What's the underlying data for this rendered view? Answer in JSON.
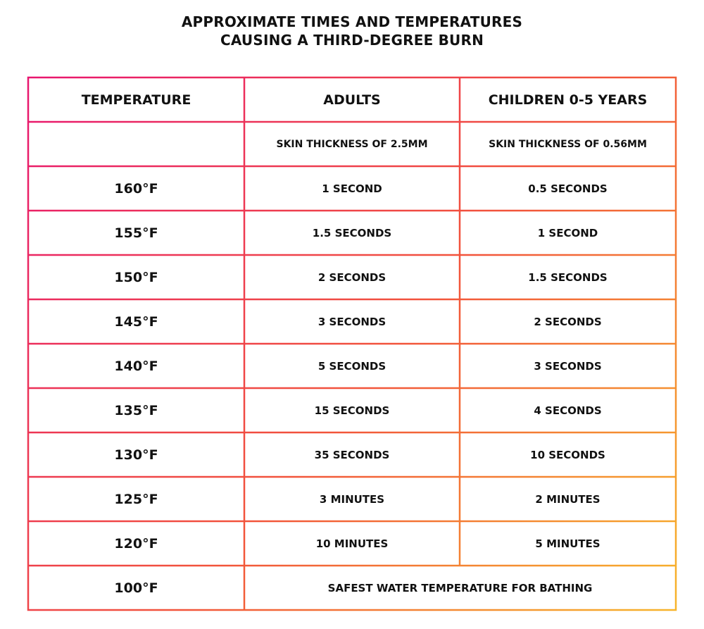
{
  "title": {
    "line1": "APPROXIMATE TIMES AND TEMPERATURES",
    "line2": "CAUSING A THIRD-DEGREE BURN"
  },
  "colors": {
    "border_gradient_start": "#e8166f",
    "border_gradient_mid": "#f2553a",
    "border_gradient_end": "#f7b52b"
  },
  "table": {
    "headers": [
      "TEMPERATURE",
      "ADULTS",
      "CHILDREN 0-5 YEARS"
    ],
    "subheader": {
      "temperature": "",
      "adults": "SKIN THICKNESS OF 2.5MM",
      "children": "SKIN THICKNESS OF 0.56MM"
    },
    "rows": [
      {
        "temp": "160°F",
        "adults": "1 SECOND",
        "children": "0.5 SECONDS"
      },
      {
        "temp": "155°F",
        "adults": "1.5 SECONDS",
        "children": "1 SECOND"
      },
      {
        "temp": "150°F",
        "adults": "2 SECONDS",
        "children": "1.5 SECONDS"
      },
      {
        "temp": "145°F",
        "adults": "3 SECONDS",
        "children": "2 SECONDS"
      },
      {
        "temp": "140°F",
        "adults": "5 SECONDS",
        "children": "3 SECONDS"
      },
      {
        "temp": "135°F",
        "adults": "15 SECONDS",
        "children": "4 SECONDS"
      },
      {
        "temp": "130°F",
        "adults": "35 SECONDS",
        "children": "10 SECONDS"
      },
      {
        "temp": "125°F",
        "adults": "3 MINUTES",
        "children": "2 MINUTES"
      },
      {
        "temp": "120°F",
        "adults": "10 MINUTES",
        "children": "5 MINUTES"
      }
    ],
    "last_row": {
      "temp": "100°F",
      "note": "SAFEST WATER TEMPERATURE FOR BATHING"
    }
  }
}
